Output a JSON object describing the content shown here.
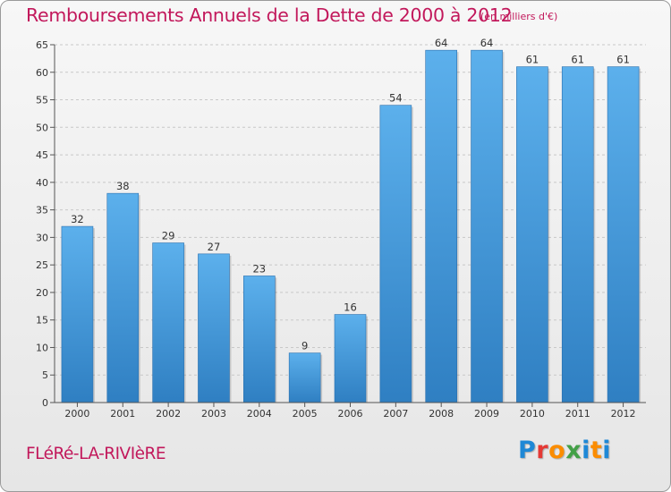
{
  "title": "Remboursements Annuels de la Dette de 2000 à 2012",
  "unit_label": "(en milliers d'€)",
  "town": "FLéRé-LA-RIVIèRE",
  "brand": {
    "letters": [
      "P",
      "r",
      "o",
      "x",
      "i",
      "t",
      "i"
    ],
    "colors": [
      "#1e88d6",
      "#e53935",
      "#fb8c00",
      "#43a047",
      "#1e88d6",
      "#fb8c00",
      "#1e88d6"
    ]
  },
  "colors": {
    "bar": "#4a9de0",
    "title": "#c2185b"
  },
  "chart_data": {
    "type": "bar",
    "title": "Remboursements Annuels de la Dette de 2000 à 2012",
    "xlabel": "",
    "ylabel": "(en milliers d'€)",
    "categories": [
      "2000",
      "2001",
      "2002",
      "2003",
      "2004",
      "2005",
      "2006",
      "2007",
      "2008",
      "2009",
      "2010",
      "2011",
      "2012"
    ],
    "values": [
      32,
      38,
      29,
      27,
      23,
      9,
      16,
      54,
      64,
      64,
      61,
      61,
      61
    ],
    "ylim": [
      0,
      65
    ],
    "yticks": [
      0,
      5,
      10,
      15,
      20,
      25,
      30,
      35,
      40,
      45,
      50,
      55,
      60,
      65
    ],
    "grid": true
  }
}
